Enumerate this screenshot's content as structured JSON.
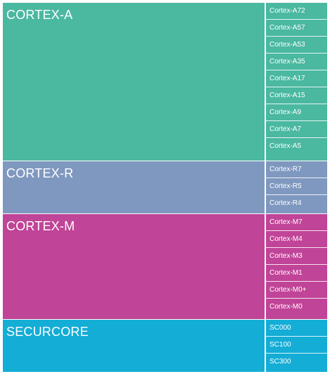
{
  "families": [
    {
      "name": "CORTEX-A",
      "color": "#4bb8a0",
      "cores": [
        "Cortex-A72",
        "Cortex-A57",
        "Cortex-A53",
        "Cortex-A35",
        "Cortex-A17",
        "Cortex-A15",
        "Cortex-A9",
        "Cortex-A7",
        "Cortex-A5"
      ]
    },
    {
      "name": "CORTEX-R",
      "color": "#7f98bf",
      "cores": [
        "Cortex-R7",
        "Cortex-R5",
        "Cortex-R4"
      ]
    },
    {
      "name": "CORTEX-M",
      "color": "#c04497",
      "cores": [
        "Cortex-M7",
        "Cortex-M4",
        "Cortex-M3",
        "Cortex-M1",
        "Cortex-M0+",
        "Cortex-M0"
      ]
    },
    {
      "name": "SECURCORE",
      "color": "#13add6",
      "cores": [
        "SC000",
        "SC100",
        "SC300"
      ]
    }
  ]
}
